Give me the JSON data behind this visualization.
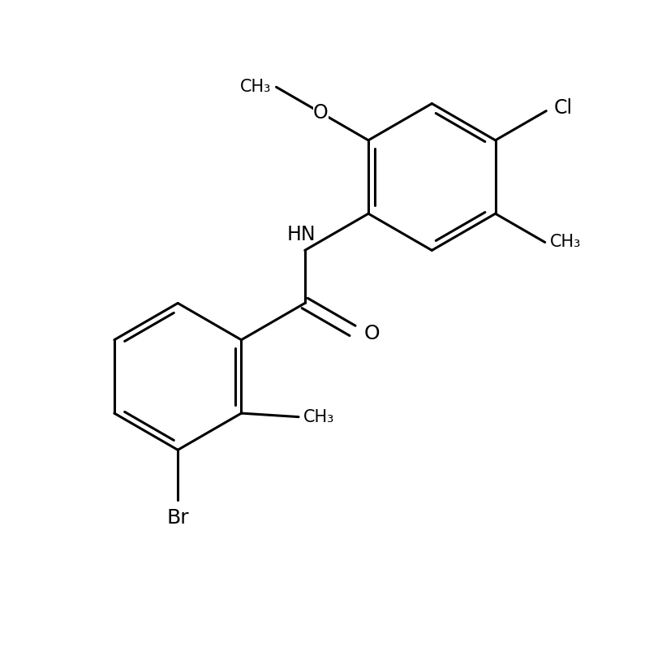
{
  "background_color": "#ffffff",
  "line_color": "#000000",
  "line_width": 2.2,
  "font_size": 17,
  "figsize": [
    8.0,
    8.02
  ],
  "dpi": 100,
  "xlim": [
    0,
    10
  ],
  "ylim": [
    0,
    10
  ]
}
